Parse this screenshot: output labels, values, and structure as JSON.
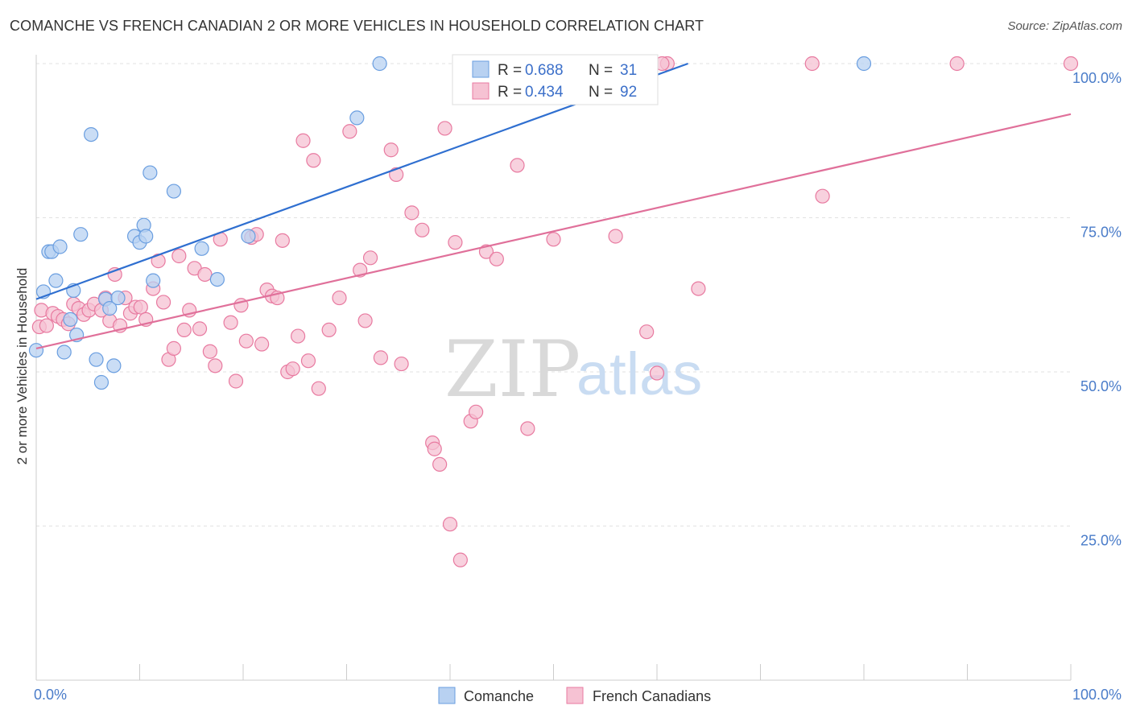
{
  "title": "COMANCHE VS FRENCH CANADIAN 2 OR MORE VEHICLES IN HOUSEHOLD CORRELATION CHART",
  "source": "Source: ZipAtlas.com",
  "watermark": {
    "zip": "ZIP",
    "atlas": "atlas"
  },
  "colors": {
    "comanche": "#6a9ee0",
    "comanche_fill": "#b8d1f1",
    "french": "#e87aa0",
    "french_fill": "#f6c2d3",
    "blue_line": "#2f6fd0",
    "pink_line": "#e0709a",
    "tick": "#4a7cc9"
  },
  "legend": {
    "r_label": "R =",
    "n_label": "N =",
    "comanche": {
      "r": "0.688",
      "n": "31"
    },
    "french": {
      "r": "0.434",
      "n": "92"
    }
  },
  "chart_data": {
    "type": "scatter",
    "title": "COMANCHE VS FRENCH CANADIAN 2 OR MORE VEHICLES IN HOUSEHOLD CORRELATION CHART",
    "xlabel": "",
    "ylabel": "2 or more Vehicles in Household",
    "xlim": [
      0,
      100
    ],
    "ylim": [
      0,
      100
    ],
    "x_tick_labels": [
      "0.0%",
      "100.0%"
    ],
    "y_ticks": [
      25,
      50,
      75,
      100
    ],
    "y_tick_labels": [
      "25.0%",
      "50.0%",
      "75.0%",
      "100.0%"
    ],
    "grid": true,
    "legend_position": "top-center",
    "series": [
      {
        "name": "Comanche",
        "r": 0.688,
        "n": 31,
        "trend": [
          [
            0,
            61.8
          ],
          [
            63,
            100
          ]
        ],
        "points": [
          [
            0,
            53.5
          ],
          [
            0.7,
            63
          ],
          [
            1.2,
            69.5
          ],
          [
            1.5,
            69.5
          ],
          [
            1.9,
            64.8
          ],
          [
            2.3,
            70.3
          ],
          [
            2.7,
            53.2
          ],
          [
            3.3,
            58.5
          ],
          [
            3.6,
            63.2
          ],
          [
            3.9,
            56
          ],
          [
            4.3,
            72.3
          ],
          [
            5.3,
            88.5
          ],
          [
            5.8,
            52
          ],
          [
            6.3,
            48.3
          ],
          [
            6.7,
            61.8
          ],
          [
            7.1,
            60.3
          ],
          [
            7.5,
            51
          ],
          [
            7.9,
            62
          ],
          [
            9.5,
            72
          ],
          [
            10,
            71
          ],
          [
            10.4,
            73.8
          ],
          [
            10.6,
            72
          ],
          [
            11,
            82.3
          ],
          [
            11.3,
            64.8
          ],
          [
            13.3,
            79.3
          ],
          [
            16,
            70
          ],
          [
            17.5,
            65
          ],
          [
            20.5,
            72
          ],
          [
            31,
            91.2
          ],
          [
            33.2,
            100
          ],
          [
            80,
            100
          ]
        ]
      },
      {
        "name": "French Canadians",
        "r": 0.434,
        "n": 92,
        "trend": [
          [
            0,
            53.8
          ],
          [
            100,
            91.8
          ]
        ],
        "points": [
          [
            0.3,
            57.3
          ],
          [
            0.5,
            60
          ],
          [
            1,
            57.5
          ],
          [
            1.6,
            59.5
          ],
          [
            2.1,
            59
          ],
          [
            2.6,
            58.5
          ],
          [
            3.1,
            57.8
          ],
          [
            3.6,
            61
          ],
          [
            4.1,
            60.3
          ],
          [
            4.6,
            59.3
          ],
          [
            5.1,
            60
          ],
          [
            5.6,
            61
          ],
          [
            6.3,
            60
          ],
          [
            6.7,
            62
          ],
          [
            7.1,
            58.3
          ],
          [
            7.6,
            65.8
          ],
          [
            8.1,
            57.5
          ],
          [
            8.6,
            62
          ],
          [
            9.1,
            59.5
          ],
          [
            9.6,
            60.5
          ],
          [
            10.1,
            60.5
          ],
          [
            10.6,
            58.5
          ],
          [
            11.3,
            63.5
          ],
          [
            11.8,
            68
          ],
          [
            12.3,
            61.3
          ],
          [
            12.8,
            52
          ],
          [
            13.3,
            53.8
          ],
          [
            13.8,
            68.8
          ],
          [
            14.3,
            56.8
          ],
          [
            14.8,
            60
          ],
          [
            15.3,
            66.8
          ],
          [
            15.8,
            57
          ],
          [
            16.3,
            65.8
          ],
          [
            16.8,
            53.3
          ],
          [
            17.3,
            51
          ],
          [
            17.8,
            71.5
          ],
          [
            18.8,
            58
          ],
          [
            19.3,
            48.5
          ],
          [
            19.8,
            60.8
          ],
          [
            20.3,
            55
          ],
          [
            20.8,
            71.8
          ],
          [
            21.3,
            72.3
          ],
          [
            21.8,
            54.5
          ],
          [
            22.3,
            63.3
          ],
          [
            22.8,
            62.3
          ],
          [
            23.3,
            62
          ],
          [
            23.8,
            71.3
          ],
          [
            24.3,
            50
          ],
          [
            24.8,
            50.5
          ],
          [
            25.3,
            55.8
          ],
          [
            25.8,
            87.5
          ],
          [
            26.3,
            51.8
          ],
          [
            26.8,
            84.3
          ],
          [
            27.3,
            47.3
          ],
          [
            28.3,
            56.8
          ],
          [
            29.3,
            62
          ],
          [
            30.3,
            89
          ],
          [
            31.3,
            66.5
          ],
          [
            31.8,
            58.3
          ],
          [
            32.3,
            68.5
          ],
          [
            33.3,
            52.3
          ],
          [
            34.3,
            86
          ],
          [
            34.8,
            82
          ],
          [
            35.3,
            51.3
          ],
          [
            36.3,
            75.8
          ],
          [
            37.3,
            73
          ],
          [
            38.3,
            38.5
          ],
          [
            38.5,
            37.5
          ],
          [
            39,
            35
          ],
          [
            39.5,
            89.5
          ],
          [
            40,
            25.3
          ],
          [
            40.5,
            71
          ],
          [
            41,
            19.5
          ],
          [
            42,
            42
          ],
          [
            42.5,
            43.5
          ],
          [
            43.5,
            69.5
          ],
          [
            44.5,
            68.3
          ],
          [
            46.5,
            83.5
          ],
          [
            47.5,
            40.8
          ],
          [
            50,
            71.5
          ],
          [
            50.5,
            100
          ],
          [
            52,
            100
          ],
          [
            56,
            72
          ],
          [
            59,
            56.5
          ],
          [
            60,
            49.8
          ],
          [
            61,
            100
          ],
          [
            64,
            63.5
          ],
          [
            60.5,
            100
          ],
          [
            75,
            100
          ],
          [
            76,
            78.5
          ],
          [
            89,
            100
          ],
          [
            100,
            100
          ]
        ]
      }
    ]
  }
}
